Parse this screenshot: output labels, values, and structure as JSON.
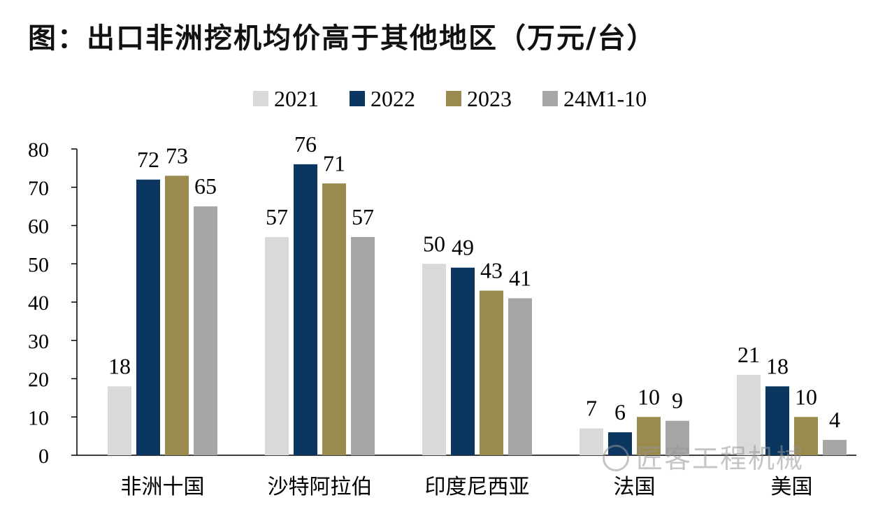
{
  "title": "图：出口非洲挖机均价高于其他地区（万元/台）",
  "watermark": "匠客工程机械",
  "chart_data": {
    "type": "bar",
    "categories": [
      "非洲十国",
      "沙特阿拉伯",
      "印度尼西亚",
      "法国",
      "美国"
    ],
    "series": [
      {
        "name": "2021",
        "color": "#d9d9d9",
        "values": [
          18,
          57,
          50,
          7,
          21
        ]
      },
      {
        "name": "2022",
        "color": "#0b3660",
        "values": [
          72,
          76,
          49,
          6,
          18
        ]
      },
      {
        "name": "2023",
        "color": "#9a8a4e",
        "values": [
          73,
          71,
          43,
          10,
          10
        ]
      },
      {
        "name": "24M1-10",
        "color": "#a6a6a6",
        "values": [
          65,
          57,
          41,
          9,
          4
        ]
      }
    ],
    "ylim": [
      0,
      80
    ],
    "yticks": [
      0,
      10,
      20,
      30,
      40,
      50,
      60,
      70,
      80
    ],
    "legend": "top-center",
    "grid": false
  }
}
